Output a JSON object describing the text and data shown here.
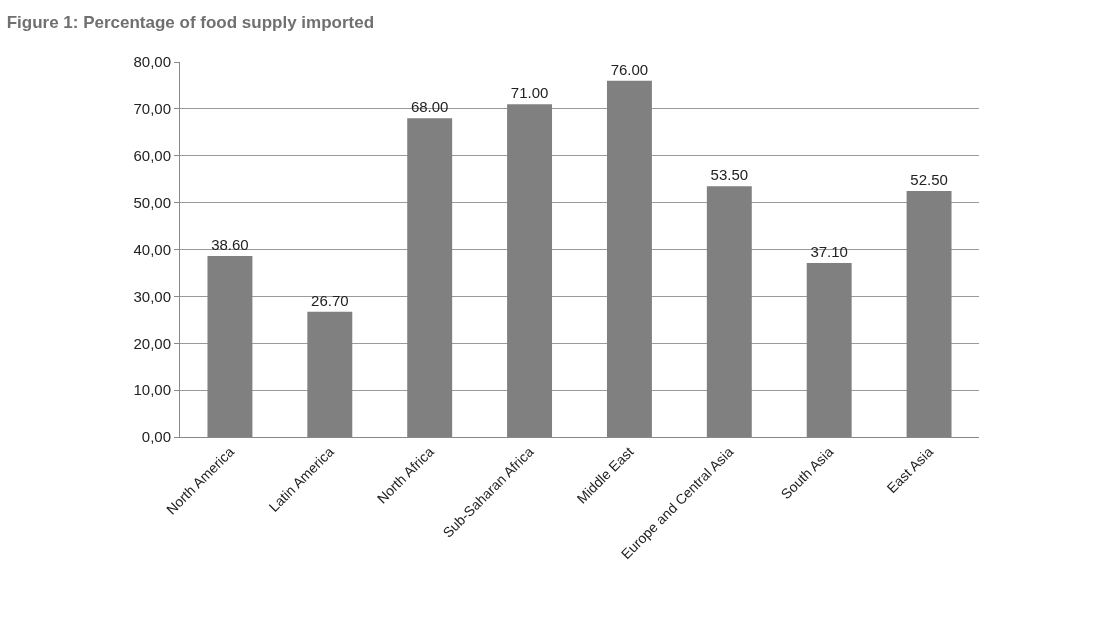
{
  "chart_data": {
    "type": "bar",
    "title": "Figure 1: Percentage of food supply imported",
    "categories": [
      "North America",
      "Latin America",
      "North Africa",
      "Sub-Saharan Africa",
      "Middle East",
      "Europe and Central Asia",
      "South Asia",
      "East Asia"
    ],
    "values": [
      38.6,
      26.7,
      68.0,
      71.0,
      76.0,
      53.5,
      37.1,
      52.5
    ],
    "value_labels": [
      "38.60",
      "26.70",
      "68.00",
      "71.00",
      "76.00",
      "53.50",
      "37.10",
      "52.50"
    ],
    "color": "#808080",
    "ylim": [
      0,
      80
    ],
    "yticks": [
      {
        "value": 0,
        "label": "0,00"
      },
      {
        "value": 10,
        "label": "10,00"
      },
      {
        "value": 20,
        "label": "20,00"
      },
      {
        "value": 30,
        "label": "30,00"
      },
      {
        "value": 40,
        "label": "40,00"
      },
      {
        "value": 50,
        "label": "50,00"
      },
      {
        "value": 60,
        "label": "60,00"
      },
      {
        "value": 70,
        "label": "70,00"
      },
      {
        "value": 80,
        "label": "80,00"
      }
    ],
    "grid": "y",
    "legend": false
  }
}
